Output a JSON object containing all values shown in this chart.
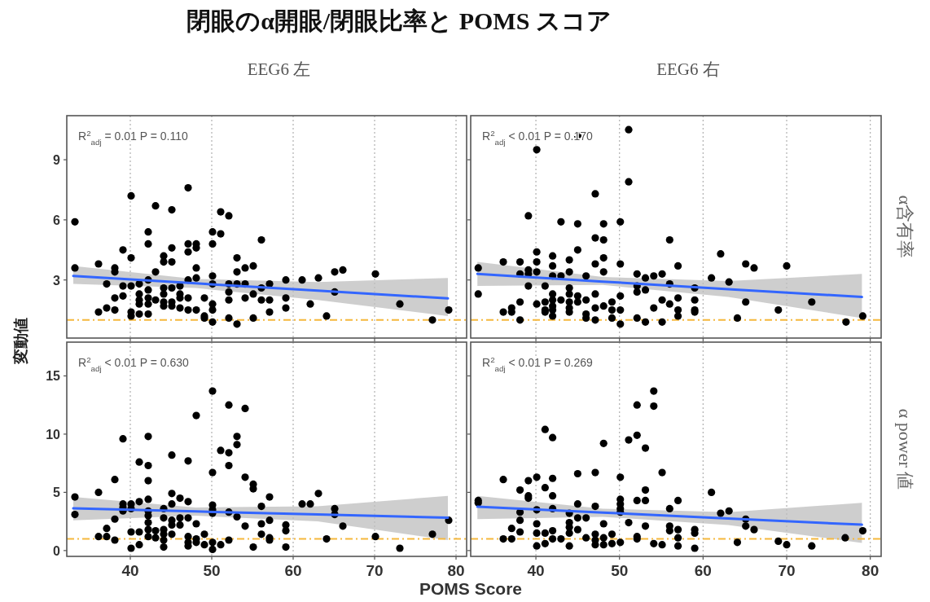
{
  "chart_data": [
    {
      "type": "scatter",
      "title": "閉眼のα開眼/閉眼比率と POMS スコア",
      "subtitle": "EEG6 左",
      "ylabel": "変動値",
      "annotations": [
        "R$^{2}$$_{adj}$ = 0.01   P = 0.110"
      ],
      "xlim": [
        32.2,
        81.3
      ],
      "ylim": [
        0.1,
        11.2
      ],
      "xticks": [
        40,
        50,
        60,
        70,
        80
      ],
      "yticks": [
        3,
        6,
        9
      ],
      "grid": "x",
      "tick_labels": "y",
      "ref_lines": [
        {
          "axis": "y",
          "value": 1,
          "color": "#f5b83d",
          "line_style": "dashed"
        }
      ],
      "series": [
        {
          "marker": "circle",
          "color": "#000000",
          "x": [
            33.2,
            33.2,
            36.1,
            36.1,
            37.1,
            37.1,
            38.1,
            38.1,
            38.1,
            38.1,
            39.1,
            39.1,
            39.1,
            40.1,
            40.1,
            40.1,
            40.1,
            40.1,
            41.1,
            41.1,
            41.1,
            41.1,
            41.1,
            42.2,
            42.2,
            42.2,
            42.2,
            42.2,
            42.2,
            42.2,
            43.1,
            43.1,
            43.1,
            44.1,
            44.1,
            44.1,
            44.1,
            44.1,
            44.1,
            45.1,
            45.1,
            45.1,
            45.1,
            45.1,
            45.1,
            46.1,
            46.1,
            46.1,
            46.1,
            47.1,
            47.1,
            47.1,
            47.1,
            47.1,
            47.1,
            48.1,
            48.1,
            48.1,
            48.1,
            48.1,
            49.1,
            49.1,
            49.1,
            50.1,
            50.1,
            50.1,
            50.1,
            50.1,
            50.1,
            50.1,
            51.1,
            51.1,
            52.1,
            52.1,
            52.1,
            52.1,
            52.1,
            53.1,
            53.1,
            53.1,
            53.1,
            54.1,
            54.1,
            54.1,
            55.1,
            55.1,
            55.1,
            56.1,
            56.1,
            56.1,
            57.1,
            57.1,
            57.1,
            59.1,
            59.1,
            59.1,
            61.1,
            62.1,
            63.1,
            64.1,
            65.1,
            65.1,
            66.1,
            70.1,
            73.1,
            77.1,
            79.1
          ],
          "values": [
            5.9,
            3.6,
            3.8,
            1.4,
            2.8,
            1.6,
            3.6,
            3.4,
            2.1,
            1.5,
            4.5,
            2.7,
            2.2,
            7.2,
            4.1,
            2.7,
            1.4,
            1.2,
            2.8,
            2.3,
            2.0,
            1.8,
            1.3,
            5.4,
            4.8,
            3.0,
            2.5,
            2.1,
            1.8,
            1.3,
            6.7,
            3.4,
            2.0,
            4.2,
            3.9,
            2.6,
            2.3,
            1.9,
            1.7,
            6.5,
            4.6,
            3.9,
            2.6,
            1.9,
            1.7,
            2.7,
            2.3,
            2.1,
            1.6,
            7.6,
            4.8,
            4.4,
            3.0,
            2.1,
            1.5,
            4.8,
            4.6,
            3.6,
            3.1,
            1.5,
            2.1,
            1.2,
            1.1,
            5.4,
            4.8,
            3.2,
            2.8,
            1.8,
            1.5,
            0.9,
            6.4,
            5.3,
            6.2,
            2.8,
            2.4,
            2.0,
            1.1,
            4.1,
            3.4,
            2.8,
            0.8,
            3.6,
            2.8,
            2.1,
            3.7,
            2.3,
            1.1,
            5.0,
            2.6,
            2.0,
            2.8,
            2.0,
            1.4,
            3.0,
            2.1,
            1.6,
            3.0,
            1.8,
            3.1,
            1.2,
            3.4,
            2.4,
            3.5,
            3.3,
            1.8,
            1.0,
            1.5
          ]
        },
        {
          "type": "line",
          "color": "#3366ff",
          "x": [
            33,
            48,
            63,
            79
          ],
          "values": [
            3.2,
            2.83,
            2.47,
            2.08
          ],
          "lower": [
            2.8,
            2.6,
            2.0,
            1.2
          ],
          "upper": [
            3.7,
            3.05,
            2.9,
            3.1
          ]
        }
      ]
    },
    {
      "type": "scatter",
      "subtitle": "EEG6 右",
      "y2label": "α含有率",
      "annotations": [
        "R$^{2}$$_{adj}$ < 0.01   P = 0.170"
      ],
      "xlim": [
        32.2,
        81.3
      ],
      "ylim": [
        0.1,
        11.2
      ],
      "xticks": [
        40,
        50,
        60,
        70,
        80
      ],
      "yticks": [
        3,
        6,
        9
      ],
      "grid": "x",
      "tick_labels": false,
      "ref_lines": [
        {
          "axis": "y",
          "value": 1,
          "color": "#f5b83d",
          "line_style": "dashed"
        }
      ],
      "series": [
        {
          "marker": "circle",
          "color": "#000000",
          "x": [
            33.1,
            33.1,
            36.1,
            36.1,
            37.1,
            37.1,
            38.1,
            38.1,
            38.1,
            38.1,
            39.1,
            39.1,
            39.1,
            39.1,
            40.1,
            40.1,
            40.1,
            40.1,
            40.1,
            41.1,
            41.1,
            41.1,
            41.1,
            42.0,
            42.0,
            42.0,
            42.0,
            42.0,
            42.0,
            42.0,
            42.0,
            43.0,
            43.0,
            43.0,
            44.0,
            44.0,
            44.0,
            44.0,
            44.0,
            44.0,
            44.0,
            45.0,
            45.0,
            45.0,
            45.0,
            45.0,
            46.0,
            46.0,
            46.0,
            46.0,
            47.1,
            47.1,
            47.1,
            47.1,
            47.1,
            47.1,
            48.1,
            48.1,
            48.1,
            48.1,
            48.1,
            49.1,
            49.1,
            49.1,
            50.1,
            50.1,
            50.1,
            50.1,
            50.1,
            51.1,
            51.1,
            52.1,
            52.1,
            52.1,
            52.1,
            53.1,
            53.1,
            53.1,
            54.1,
            54.1,
            55.1,
            55.1,
            55.1,
            56.0,
            56.0,
            56.0,
            57.0,
            57.0,
            57.0,
            57.0,
            59.0,
            59.0,
            59.0,
            59.0,
            61.0,
            62.1,
            63.1,
            64.1,
            65.1,
            65.1,
            66.1,
            69.0,
            70.0,
            73.0,
            77.1,
            79.1
          ],
          "values": [
            3.6,
            2.3,
            3.9,
            1.4,
            1.6,
            1.4,
            3.9,
            3.3,
            1.9,
            1.0,
            6.2,
            3.5,
            3.3,
            2.7,
            9.5,
            4.4,
            3.9,
            3.4,
            1.8,
            2.7,
            1.9,
            1.5,
            1.4,
            4.2,
            3.7,
            3.2,
            2.3,
            2.0,
            1.7,
            1.5,
            1.2,
            5.9,
            3.2,
            2.0,
            4.0,
            3.4,
            2.6,
            2.3,
            1.9,
            1.6,
            1.4,
            10.2,
            5.8,
            4.5,
            2.2,
            1.9,
            3.2,
            2.0,
            1.3,
            1.1,
            7.3,
            5.1,
            3.8,
            2.3,
            1.6,
            1.0,
            5.8,
            5.0,
            4.1,
            3.4,
            1.7,
            1.9,
            1.5,
            1.1,
            5.9,
            3.8,
            2.2,
            1.5,
            0.8,
            10.5,
            7.9,
            3.3,
            2.7,
            2.4,
            1.1,
            3.1,
            2.5,
            0.9,
            3.2,
            1.6,
            3.3,
            2.0,
            0.9,
            5.0,
            2.8,
            1.8,
            3.7,
            2.1,
            1.5,
            1.2,
            2.6,
            2.0,
            1.5,
            1.4,
            3.1,
            4.3,
            2.9,
            1.1,
            3.8,
            1.9,
            3.6,
            1.5,
            3.7,
            1.9,
            0.9,
            1.2
          ]
        },
        {
          "type": "line",
          "color": "#3366ff",
          "x": [
            33,
            48,
            63,
            79
          ],
          "values": [
            3.3,
            2.92,
            2.54,
            2.15
          ],
          "lower": [
            2.7,
            2.75,
            2.15,
            1.1
          ],
          "upper": [
            3.9,
            3.15,
            2.95,
            3.3
          ]
        }
      ]
    },
    {
      "type": "scatter",
      "xlabel": "POMS Score",
      "annotations": [
        "R$^{2}$$_{adj}$ < 0.01   P = 0.630"
      ],
      "xlim": [
        32.2,
        81.3
      ],
      "ylim": [
        -0.5,
        17.9
      ],
      "xticks": [
        40,
        50,
        60,
        70,
        80
      ],
      "yticks": [
        0,
        5,
        10,
        15
      ],
      "grid": "x",
      "ref_lines": [
        {
          "axis": "y",
          "value": 1,
          "color": "#f5b83d",
          "line_style": "dashed"
        }
      ],
      "series": [
        {
          "marker": "circle",
          "color": "#000000",
          "x": [
            33.2,
            33.2,
            36.1,
            36.1,
            37.1,
            37.1,
            38.1,
            38.1,
            38.1,
            39.1,
            39.1,
            39.1,
            39.1,
            40.1,
            40.1,
            40.1,
            40.1,
            41.1,
            41.1,
            41.1,
            41.1,
            42.2,
            42.2,
            42.2,
            42.2,
            42.2,
            42.2,
            42.2,
            42.2,
            42.2,
            43.1,
            43.1,
            44.1,
            44.1,
            44.1,
            44.1,
            44.1,
            44.1,
            45.1,
            45.1,
            45.1,
            45.1,
            45.1,
            45.1,
            46.1,
            46.1,
            46.1,
            47.1,
            47.1,
            47.1,
            47.1,
            47.1,
            47.1,
            48.1,
            48.1,
            48.1,
            48.1,
            49.1,
            49.1,
            50.1,
            50.1,
            50.1,
            50.1,
            50.1,
            50.1,
            50.1,
            51.1,
            51.1,
            52.1,
            52.1,
            52.1,
            52.1,
            52.1,
            53.1,
            53.1,
            53.1,
            54.1,
            54.1,
            54.1,
            55.1,
            55.1,
            55.1,
            56.1,
            56.1,
            56.1,
            57.1,
            57.1,
            57.1,
            57.1,
            59.1,
            59.1,
            59.1,
            61.1,
            62.1,
            63.1,
            64.1,
            65.1,
            65.1,
            66.1,
            70.1,
            73.1,
            77.1,
            79.1
          ],
          "values": [
            4.6,
            3.1,
            5.0,
            1.2,
            1.9,
            1.2,
            6.1,
            2.7,
            0.9,
            9.6,
            4.0,
            3.7,
            3.4,
            4.0,
            3.6,
            1.6,
            0.2,
            7.6,
            4.2,
            1.6,
            0.5,
            9.8,
            7.3,
            6.0,
            4.4,
            3.4,
            3.0,
            2.4,
            1.8,
            1.2,
            1.7,
            1.1,
            3.6,
            2.8,
            1.8,
            1.4,
            0.9,
            0.3,
            8.2,
            4.9,
            4.0,
            2.6,
            2.2,
            1.4,
            4.5,
            2.8,
            2.2,
            7.7,
            4.2,
            2.8,
            1.2,
            0.7,
            0.4,
            11.6,
            2.3,
            1.0,
            0.7,
            1.4,
            0.5,
            13.7,
            6.7,
            3.9,
            3.5,
            3.2,
            0.7,
            0.1,
            8.6,
            0.5,
            12.5,
            8.4,
            7.3,
            3.3,
            0.9,
            9.8,
            9.1,
            2.9,
            12.2,
            6.3,
            2.1,
            5.7,
            5.3,
            0.3,
            3.8,
            2.3,
            1.4,
            4.6,
            2.6,
            1.1,
            0.9,
            2.2,
            1.7,
            0.3,
            4.0,
            4.0,
            4.9,
            1.0,
            3.6,
            3.1,
            2.1,
            1.2,
            0.2,
            1.4,
            2.6
          ]
        },
        {
          "type": "line",
          "color": "#3366ff",
          "x": [
            33,
            48,
            63,
            79
          ],
          "values": [
            3.62,
            3.36,
            3.1,
            2.83
          ],
          "lower": [
            2.6,
            3.0,
            2.5,
            0.9
          ],
          "upper": [
            4.6,
            3.7,
            3.8,
            4.7
          ]
        }
      ]
    },
    {
      "type": "scatter",
      "y2label": "α power 値",
      "annotations": [
        "R$^{2}$$_{adj}$ < 0.01   P = 0.269"
      ],
      "xlim": [
        32.2,
        81.3
      ],
      "ylim": [
        -0.5,
        17.9
      ],
      "xticks": [
        40,
        50,
        60,
        70,
        80
      ],
      "yticks": [
        0,
        5,
        10,
        15
      ],
      "grid": "x",
      "tick_labels": "x",
      "ref_lines": [
        {
          "axis": "y",
          "value": 1,
          "color": "#f5b83d",
          "line_style": "dashed"
        }
      ],
      "series": [
        {
          "marker": "circle",
          "color": "#000000",
          "x": [
            33.1,
            33.1,
            36.1,
            36.1,
            37.1,
            37.1,
            38.1,
            38.1,
            38.1,
            38.1,
            39.1,
            39.1,
            39.1,
            40.1,
            40.1,
            40.1,
            40.1,
            40.1,
            41.1,
            41.1,
            41.1,
            41.1,
            42.0,
            42.0,
            42.0,
            42.0,
            42.0,
            42.0,
            43.0,
            44.0,
            44.0,
            44.0,
            44.0,
            44.0,
            45.0,
            45.0,
            45.0,
            45.0,
            46.0,
            46.0,
            47.1,
            47.1,
            47.1,
            47.1,
            47.1,
            48.1,
            48.1,
            48.1,
            48.1,
            49.1,
            49.1,
            50.1,
            50.1,
            50.1,
            50.1,
            50.1,
            50.1,
            51.1,
            51.1,
            52.1,
            52.1,
            52.1,
            52.1,
            52.1,
            53.1,
            53.1,
            53.1,
            53.1,
            54.1,
            54.1,
            54.1,
            55.1,
            55.1,
            56.0,
            56.0,
            56.0,
            57.0,
            57.0,
            57.0,
            57.0,
            59.0,
            59.0,
            59.0,
            61.0,
            62.1,
            63.1,
            64.1,
            65.1,
            65.1,
            66.1,
            69.0,
            70.0,
            73.0,
            77.0,
            79.1
          ],
          "values": [
            4.3,
            4.1,
            6.1,
            1.0,
            1.9,
            1.0,
            5.2,
            3.3,
            2.6,
            1.6,
            6.0,
            4.7,
            4.5,
            6.3,
            3.5,
            2.3,
            1.5,
            0.4,
            10.4,
            5.4,
            1.5,
            0.6,
            9.7,
            6.2,
            4.7,
            3.6,
            1.7,
            1.0,
            1.0,
            3.2,
            2.4,
            2.0,
            1.5,
            0.4,
            6.6,
            4.0,
            2.8,
            1.8,
            2.8,
            1.1,
            6.7,
            3.8,
            1.4,
            0.9,
            0.5,
            9.2,
            2.3,
            1.1,
            0.5,
            1.4,
            0.6,
            6.3,
            4.4,
            4.0,
            3.6,
            3.3,
            0.7,
            9.5,
            2.4,
            12.5,
            9.9,
            4.3,
            1.2,
            1.0,
            8.8,
            5.2,
            4.3,
            2.1,
            13.7,
            12.4,
            0.6,
            6.7,
            0.5,
            3.6,
            2.1,
            1.7,
            4.3,
            1.8,
            1.1,
            0.4,
            1.8,
            1.5,
            0.2,
            5.0,
            3.2,
            3.4,
            0.7,
            2.7,
            2.1,
            1.8,
            0.8,
            0.5,
            0.4,
            1.1,
            1.7
          ]
        },
        {
          "type": "line",
          "color": "#3366ff",
          "x": [
            33,
            48,
            63,
            79
          ],
          "values": [
            3.76,
            3.26,
            2.76,
            2.22
          ],
          "lower": [
            2.7,
            2.9,
            2.2,
            0.65
          ],
          "upper": [
            4.7,
            3.6,
            3.3,
            4.1
          ]
        }
      ]
    }
  ]
}
